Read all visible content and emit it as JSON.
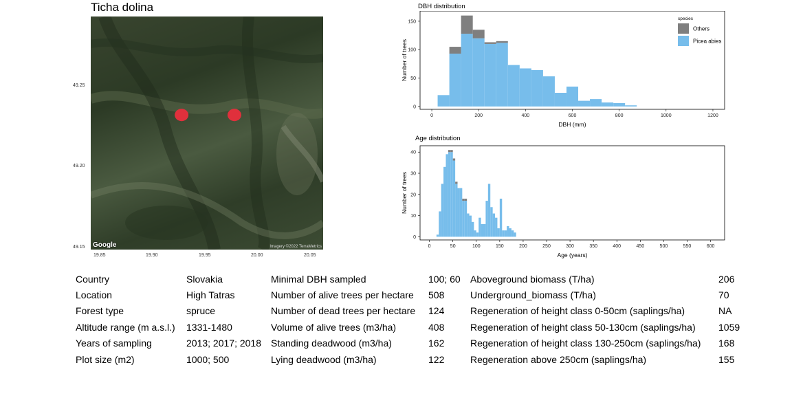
{
  "site_title": "Ticha dolina",
  "map": {
    "attribution": "Google",
    "credit": "Imagery ©2022 TerraMetrics",
    "lat_ticks": [
      "49.25",
      "49.20",
      "49.15"
    ],
    "lon_ticks": [
      "19.85",
      "19.90",
      "19.95",
      "20.00",
      "20.05"
    ],
    "plot_marker_color": "#e0303c",
    "plots": [
      {
        "lon": 19.928,
        "lat": 49.22
      },
      {
        "lon": 19.978,
        "lat": 49.22
      }
    ]
  },
  "chart_data": [
    {
      "type": "bar",
      "stacked": true,
      "title": "DBH distribution",
      "xlabel": "DBH (mm)",
      "ylabel": "Number of trees",
      "xlim": [
        -50,
        1250
      ],
      "ylim": [
        -5,
        168
      ],
      "x_ticks": [
        0,
        200,
        400,
        600,
        800,
        1000,
        1200
      ],
      "y_ticks": [
        0,
        50,
        100,
        150
      ],
      "bin_width": 50,
      "bin_starts": [
        25,
        75,
        125,
        175,
        225,
        275,
        325,
        375,
        425,
        475,
        525,
        575,
        625,
        675,
        725,
        775,
        825
      ],
      "legend_title": "species",
      "legend_position": "top-right",
      "series": [
        {
          "name": "Picea abies",
          "color": "#77bdeb",
          "values": [
            20,
            93,
            128,
            120,
            110,
            112,
            73,
            67,
            64,
            53,
            24,
            35,
            10,
            13,
            7,
            6,
            2
          ]
        },
        {
          "name": "Others",
          "color": "#7f7f7f",
          "values": [
            0,
            12,
            32,
            15,
            3,
            3,
            0,
            0,
            0,
            0,
            0,
            0,
            0,
            0,
            0,
            0,
            0
          ]
        }
      ]
    },
    {
      "type": "bar",
      "stacked": true,
      "title": "Age distribution",
      "xlabel": "Age (years)",
      "ylabel": "Number of trees",
      "xlim": [
        -20,
        630
      ],
      "ylim": [
        -1.5,
        43
      ],
      "x_ticks": [
        0,
        50,
        100,
        150,
        200,
        250,
        300,
        350,
        400,
        450,
        500,
        550,
        600
      ],
      "y_ticks": [
        0,
        10,
        20,
        30,
        40
      ],
      "bin_width": 5,
      "bin_starts": [
        15,
        20,
        25,
        30,
        35,
        40,
        45,
        50,
        55,
        60,
        65,
        70,
        75,
        80,
        85,
        90,
        95,
        100,
        105,
        110,
        115,
        120,
        125,
        130,
        135,
        140,
        145,
        150,
        155,
        160,
        165,
        170,
        175,
        180,
        185,
        190,
        195,
        200,
        205,
        210,
        215,
        220,
        225,
        230,
        235,
        240,
        245,
        250
      ],
      "series": [
        {
          "name": "Picea abies",
          "color": "#77bdeb",
          "values": [
            1,
            12,
            25,
            33,
            39,
            40,
            40,
            36,
            25,
            23,
            23,
            17,
            17,
            11,
            10,
            7,
            3,
            2,
            9,
            6,
            6,
            17,
            25,
            14,
            11,
            9,
            4,
            18,
            3,
            3,
            5,
            4,
            3,
            2,
            0,
            0,
            0,
            0,
            0,
            0,
            0,
            0,
            0,
            0,
            0,
            0,
            0,
            0
          ]
        },
        {
          "name": "Others",
          "color": "#7f7f7f",
          "values": [
            0,
            0,
            0,
            0,
            0,
            1,
            1,
            1,
            1,
            0,
            0,
            1,
            1,
            0,
            0,
            0,
            0,
            0,
            0,
            0,
            0,
            0,
            0,
            0,
            0,
            0,
            0,
            0,
            0,
            0,
            0,
            0,
            0,
            0,
            0,
            0,
            0,
            0,
            0,
            0,
            0,
            0,
            0,
            0,
            0,
            0,
            0,
            0
          ]
        }
      ]
    }
  ],
  "info_table": [
    [
      "Country",
      "Slovakia",
      "Minimal DBH sampled",
      "100; 60",
      "Aboveground biomass (T/ha)",
      "206"
    ],
    [
      "Location",
      "High Tatras",
      "Number of alive trees per hectare",
      "508",
      "Underground_biomass (T/ha)",
      "70"
    ],
    [
      "Forest type",
      "spruce",
      "Number of dead trees per hectare",
      "124",
      "Regeneration of height class 0-50cm (saplings/ha)",
      "NA"
    ],
    [
      "Altitude range (m a.s.l.)",
      "1331-1480",
      "Volume of alive trees (m3/ha)",
      "408",
      "Regeneration of height class 50-130cm (saplings/ha)",
      "1059"
    ],
    [
      "Years of sampling",
      "2013; 2017; 2018",
      "Standing deadwood (m3/ha)",
      "162",
      "Regeneration of height class 130-250cm (saplings/ha)",
      "168"
    ],
    [
      "Plot size (m2)",
      "1000; 500",
      "Lying deadwood (m3/ha)",
      "122",
      "Regeneration above 250cm (saplings/ha)",
      "155"
    ]
  ]
}
